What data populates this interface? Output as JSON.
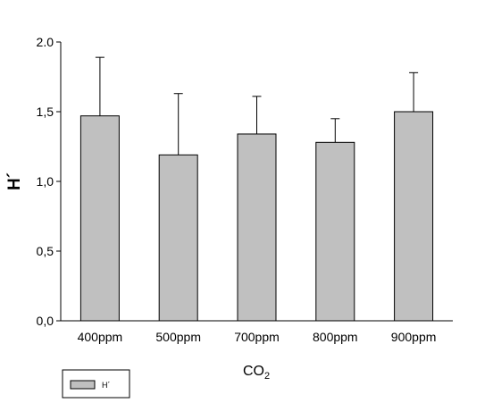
{
  "chart_data": {
    "type": "bar",
    "categories": [
      "400ppm",
      "500ppm",
      "700ppm",
      "800ppm",
      "900ppm"
    ],
    "series": [
      {
        "name": "H´",
        "values": [
          1.47,
          1.19,
          1.34,
          1.28,
          1.5
        ],
        "errors": [
          0.42,
          0.44,
          0.27,
          0.17,
          0.28
        ]
      }
    ],
    "ylabel": "H´",
    "xlabel": "CO",
    "xlabel_subscript": "2",
    "ylim": [
      0,
      2.0
    ],
    "yticks": [
      "0,0",
      "0,5",
      "1,0",
      "1,5",
      "2.0"
    ],
    "ytick_values": [
      0,
      0.5,
      1.0,
      1.5,
      2.0
    ],
    "bar_color": "#c0c0c0",
    "grid": false,
    "legend_position": "bottom-left"
  }
}
